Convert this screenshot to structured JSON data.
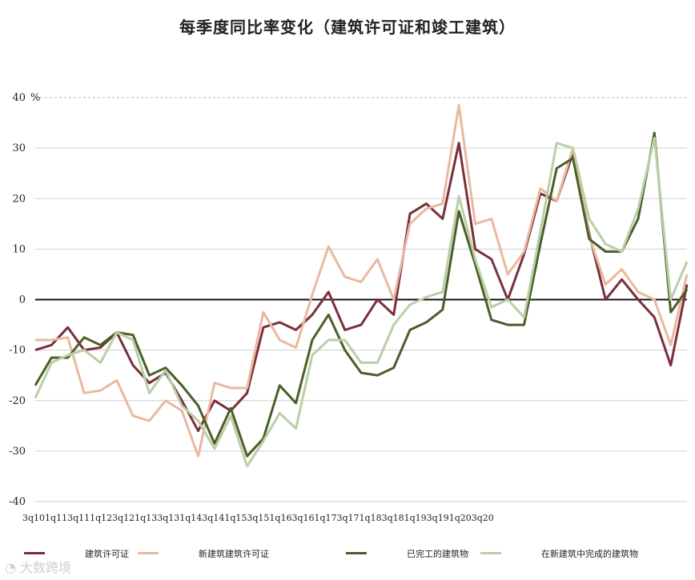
{
  "chart_data": {
    "type": "line",
    "title": "每季度同比率变化（建筑许可证和竣工建筑）",
    "ylabel": "%",
    "ylim": [
      -40,
      40
    ],
    "yticks": [
      -40,
      -30,
      -20,
      -10,
      0,
      10,
      20,
      30,
      40
    ],
    "grid": true,
    "legend_position": "bottom",
    "x_tick_text": "3q101q113q111q123q121q133q131q143q141q153q151q163q161q173q171q183q181q193q191q203q20",
    "series": [
      {
        "name": "建筑许可证",
        "color": "#7a2f3c",
        "values": [
          -10,
          -9,
          -5.5,
          -10,
          -9.5,
          -6.5,
          -13,
          -16.5,
          -14.5,
          -20,
          -26,
          -20,
          -22,
          -18.5,
          -5.5,
          -4.5,
          -6,
          -3,
          1.5,
          -6,
          -5,
          0,
          -3,
          17,
          19,
          16,
          31,
          10,
          8,
          0,
          9,
          21,
          19.5,
          29,
          13,
          0,
          4,
          0,
          -3.5,
          -13,
          3
        ]
      },
      {
        "name": "新建筑建筑许可证",
        "color": "#e9b99f",
        "values": [
          -8,
          -8,
          -7.5,
          -18.5,
          -18,
          -16,
          -23,
          -24,
          -20,
          -22,
          -31,
          -16.5,
          -17.5,
          -17.5,
          -2.5,
          -8,
          -9.5,
          1,
          10.5,
          4.5,
          3.5,
          8,
          0,
          15,
          18,
          19,
          38.5,
          15,
          16,
          5,
          9.5,
          22,
          19.5,
          30,
          12.5,
          3,
          6,
          1.5,
          0,
          -9,
          5
        ]
      },
      {
        "name": "已完工的建筑物",
        "color": "#4a5e28",
        "values": [
          -17,
          -11.5,
          -11.5,
          -7.5,
          -9,
          -6.5,
          -7,
          -15,
          -13.5,
          -17,
          -21,
          -28.5,
          -21.5,
          -31,
          -27.5,
          -17,
          -20.5,
          -8,
          -3,
          -10,
          -14.5,
          -15,
          -13.5,
          -6,
          -4.5,
          -2,
          17.5,
          7,
          -4,
          -5,
          -5,
          11,
          26,
          28,
          12,
          9.5,
          9.5,
          16,
          33,
          -2.5,
          2
        ]
      },
      {
        "name": "在新建筑中完成的建筑物",
        "color": "#b9cfa6",
        "values": [
          -19.5,
          -12.5,
          -11,
          -10,
          -12.5,
          -6.5,
          -8,
          -18.5,
          -14,
          -21,
          -24,
          -29.5,
          -23,
          -33,
          -28,
          -22.5,
          -25.5,
          -11,
          -8,
          -8,
          -12.5,
          -12.5,
          -5,
          -1,
          0.5,
          1.5,
          20.5,
          8,
          -1.5,
          0,
          -3.5,
          13.5,
          31,
          30,
          16,
          11,
          9.5,
          18,
          32,
          0,
          7.5
        ]
      }
    ]
  }
}
